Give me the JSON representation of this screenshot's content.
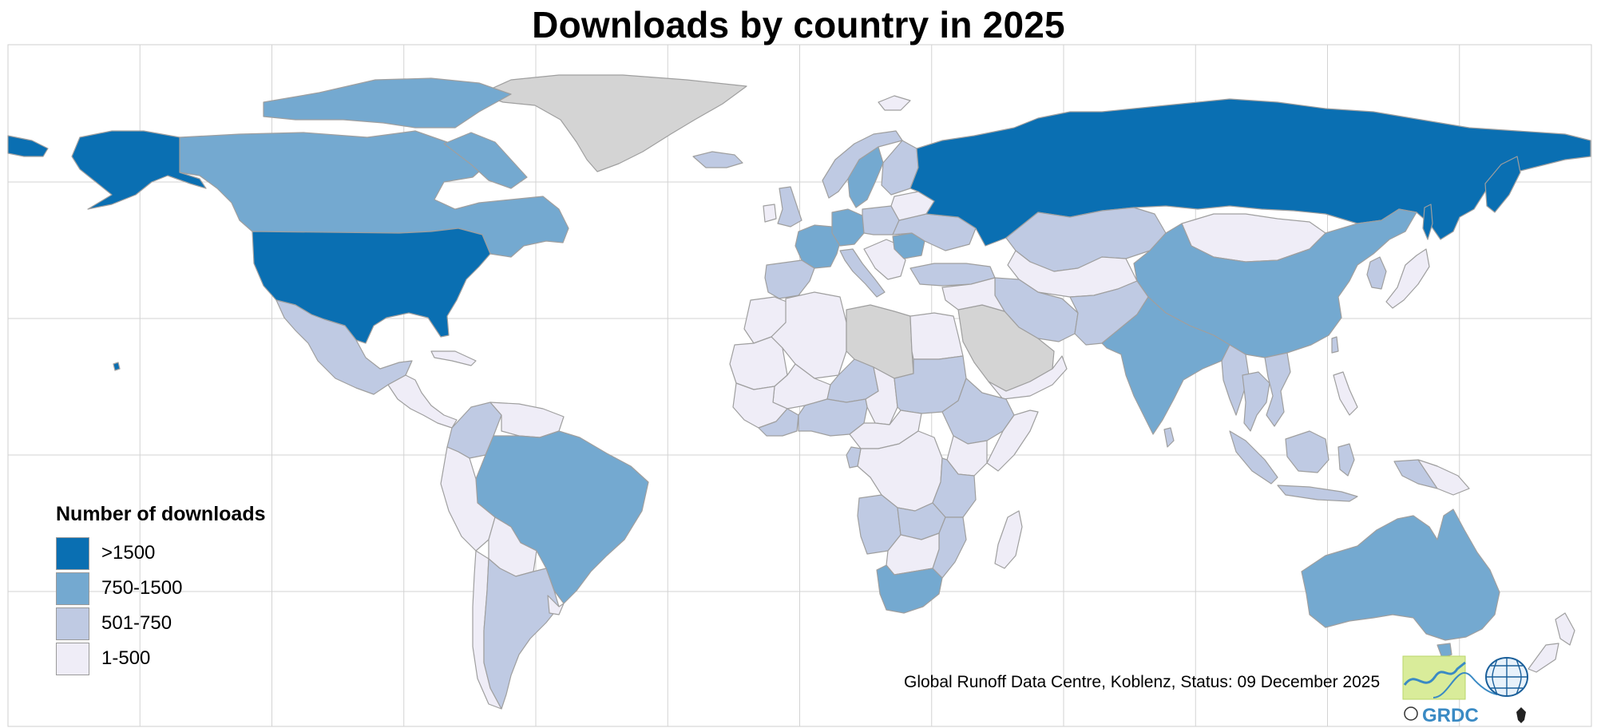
{
  "title": "Downloads by country in 2025",
  "legend": {
    "title": "Number of downloads",
    "items": [
      {
        "label": ">1500",
        "color": "#0a6fb2"
      },
      {
        "label": "750-1500",
        "color": "#74a9d0"
      },
      {
        "label": "501-750",
        "color": "#bfcae3"
      },
      {
        "label": "1-500",
        "color": "#efedf7"
      }
    ]
  },
  "no_data_color": "#d4d4d4",
  "credit": "Global Runoff Data Centre, Koblenz, Status: 09 December 2025",
  "logo": {
    "text": "GRDC"
  },
  "countries": [
    {
      "name": "United States",
      "class": ">1500"
    },
    {
      "name": "Alaska",
      "class": ">1500"
    },
    {
      "name": "Russia",
      "class": ">1500"
    },
    {
      "name": "Canada",
      "class": "750-1500"
    },
    {
      "name": "Brazil",
      "class": "750-1500"
    },
    {
      "name": "China",
      "class": "750-1500"
    },
    {
      "name": "India",
      "class": "750-1500"
    },
    {
      "name": "Australia",
      "class": "750-1500"
    },
    {
      "name": "Germany",
      "class": "750-1500"
    },
    {
      "name": "France",
      "class": "750-1500"
    },
    {
      "name": "Sweden",
      "class": "750-1500"
    },
    {
      "name": "Romania",
      "class": "750-1500"
    },
    {
      "name": "South Africa",
      "class": "750-1500"
    },
    {
      "name": "Mexico",
      "class": "501-750"
    },
    {
      "name": "Argentina",
      "class": "501-750"
    },
    {
      "name": "Colombia",
      "class": "501-750"
    },
    {
      "name": "Kazakhstan",
      "class": "501-750"
    },
    {
      "name": "Iran",
      "class": "501-750"
    },
    {
      "name": "Turkey",
      "class": "501-750"
    },
    {
      "name": "Ethiopia",
      "class": "501-750"
    },
    {
      "name": "Nigeria",
      "class": "501-750"
    },
    {
      "name": "Indonesia",
      "class": "501-750"
    },
    {
      "name": "Mongolia",
      "class": "1-500"
    },
    {
      "name": "Peru",
      "class": "1-500"
    },
    {
      "name": "Algeria",
      "class": "1-500"
    },
    {
      "name": "Madagascar",
      "class": "1-500"
    },
    {
      "name": "Greenland",
      "class": "no data"
    },
    {
      "name": "Saudi Arabia",
      "class": "no data"
    },
    {
      "name": "Libya",
      "class": "no data"
    }
  ]
}
